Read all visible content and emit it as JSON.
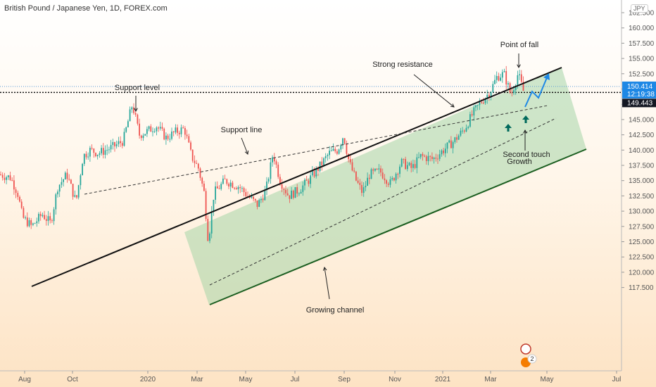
{
  "header": {
    "title": "British Pound / Japanese Yen, 1D, FOREX.com",
    "currency": "JPY"
  },
  "chart_data": {
    "type": "candlestick",
    "title": "British Pound / Japanese Yen, 1D, FOREX.com",
    "xlabel": "",
    "ylabel": "",
    "ylim": [
      114.5,
      165.5
    ],
    "y_ticks": [
      "162.500",
      "160.000",
      "157.500",
      "155.000",
      "152.500",
      "150.000",
      "147.500",
      "145.000",
      "142.500",
      "140.000",
      "137.500",
      "135.000",
      "132.500",
      "130.000",
      "127.500",
      "125.000",
      "122.500",
      "120.000",
      "117.500"
    ],
    "x_ticks": [
      "Aug",
      "Oct",
      "2020",
      "Mar",
      "May",
      "Jul",
      "Sep",
      "Nov",
      "2021",
      "Mar",
      "May",
      "Jul"
    ],
    "price_path": [
      [
        0,
        136.0
      ],
      [
        15,
        135.5
      ],
      [
        25,
        133.0
      ],
      [
        32,
        129.0
      ],
      [
        45,
        127.5
      ],
      [
        60,
        129.5
      ],
      [
        72,
        128.0
      ],
      [
        82,
        134.0
      ],
      [
        95,
        136.0
      ],
      [
        108,
        131.5
      ],
      [
        118,
        139.0
      ],
      [
        128,
        140.0
      ],
      [
        140,
        139.5
      ],
      [
        160,
        140.5
      ],
      [
        175,
        141.5
      ],
      [
        188,
        147.5
      ],
      [
        198,
        142.5
      ],
      [
        208,
        143.0
      ],
      [
        222,
        144.0
      ],
      [
        236,
        142.0
      ],
      [
        250,
        143.0
      ],
      [
        262,
        143.5
      ],
      [
        272,
        139.0
      ],
      [
        282,
        137.0
      ],
      [
        290,
        133.0
      ],
      [
        296,
        125.0
      ],
      [
        304,
        133.0
      ],
      [
        320,
        135.0
      ],
      [
        340,
        134.0
      ],
      [
        352,
        132.5
      ],
      [
        366,
        131.0
      ],
      [
        378,
        133.5
      ],
      [
        388,
        139.5
      ],
      [
        398,
        135.0
      ],
      [
        410,
        132.5
      ],
      [
        425,
        133.5
      ],
      [
        438,
        135.0
      ],
      [
        452,
        137.0
      ],
      [
        468,
        139.5
      ],
      [
        480,
        140.0
      ],
      [
        488,
        142.5
      ],
      [
        496,
        138.0
      ],
      [
        506,
        135.0
      ],
      [
        515,
        133.0
      ],
      [
        525,
        136.0
      ],
      [
        540,
        136.5
      ],
      [
        555,
        134.5
      ],
      [
        570,
        138.0
      ],
      [
        585,
        137.0
      ],
      [
        598,
        139.0
      ],
      [
        615,
        138.5
      ],
      [
        630,
        140.0
      ],
      [
        645,
        141.5
      ],
      [
        660,
        143.5
      ],
      [
        672,
        146.0
      ],
      [
        684,
        148.0
      ],
      [
        696,
        149.5
      ],
      [
        706,
        152.0
      ],
      [
        716,
        152.5
      ],
      [
        726,
        149.0
      ],
      [
        736,
        152.5
      ],
      [
        744,
        149.5
      ]
    ],
    "annotations": [
      "Support level",
      "Support line",
      "Strong resistance",
      "Point of fall",
      "Second touch",
      "Growth",
      "Growing channel"
    ],
    "price_labels": {
      "current": {
        "value": "150.414",
        "countdown": "12:19:38",
        "color": "#1e88e5"
      },
      "level": {
        "value": "149.443",
        "color": "#131722"
      }
    },
    "lines": {
      "support_level_price": 149.443,
      "current_price": 150.414
    },
    "colors": {
      "up": "#26a69a",
      "down": "#ef5350",
      "channel_fill": "#a5d6a7",
      "channel_border": "#2e7d32",
      "arrow_blue": "#1e88e5",
      "arrow_dark": "#00695c"
    },
    "legend_badge": "2"
  }
}
